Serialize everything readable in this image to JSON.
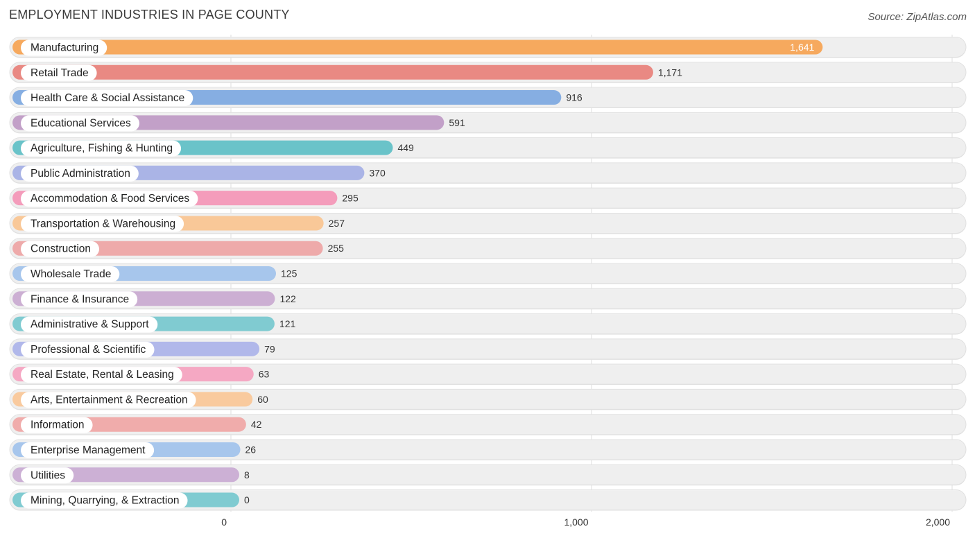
{
  "header": {
    "title": "EMPLOYMENT INDUSTRIES IN PAGE COUNTY",
    "source": "Source: ZipAtlas.com"
  },
  "chart_data": {
    "type": "bar",
    "orientation": "horizontal",
    "title": "EMPLOYMENT INDUSTRIES IN PAGE COUNTY",
    "xlabel": "",
    "ylabel": "",
    "xlim": [
      0,
      2000
    ],
    "x_ticks": [
      0,
      1000,
      2000
    ],
    "x_tick_labels": [
      "0",
      "1,000",
      "2,000"
    ],
    "grid": true,
    "categories": [
      "Manufacturing",
      "Retail Trade",
      "Health Care & Social Assistance",
      "Educational Services",
      "Agriculture, Fishing & Hunting",
      "Public Administration",
      "Accommodation & Food Services",
      "Transportation & Warehousing",
      "Construction",
      "Wholesale Trade",
      "Finance & Insurance",
      "Administrative & Support",
      "Professional & Scientific",
      "Real Estate, Rental & Leasing",
      "Arts, Entertainment & Recreation",
      "Information",
      "Enterprise Management",
      "Utilities",
      "Mining, Quarrying, & Extraction"
    ],
    "values": [
      1641,
      1171,
      916,
      591,
      449,
      370,
      295,
      257,
      255,
      125,
      122,
      121,
      79,
      63,
      60,
      42,
      26,
      8,
      0
    ],
    "value_labels": [
      "1,641",
      "1,171",
      "916",
      "591",
      "449",
      "370",
      "295",
      "257",
      "255",
      "125",
      "122",
      "121",
      "79",
      "63",
      "60",
      "42",
      "26",
      "8",
      "0"
    ],
    "colors": [
      "#f6a95e",
      "#e98983",
      "#86aee2",
      "#c2a0c8",
      "#6ac3c9",
      "#aab4e6",
      "#f49cbb",
      "#f9c898",
      "#eeaaaa",
      "#a7c6ec",
      "#ccafd3",
      "#80cbd1",
      "#b1b8ea",
      "#f5a8c3",
      "#f9ca9e",
      "#f0acab",
      "#a7c6ec",
      "#ccb0d5",
      "#80cbd1"
    ]
  }
}
